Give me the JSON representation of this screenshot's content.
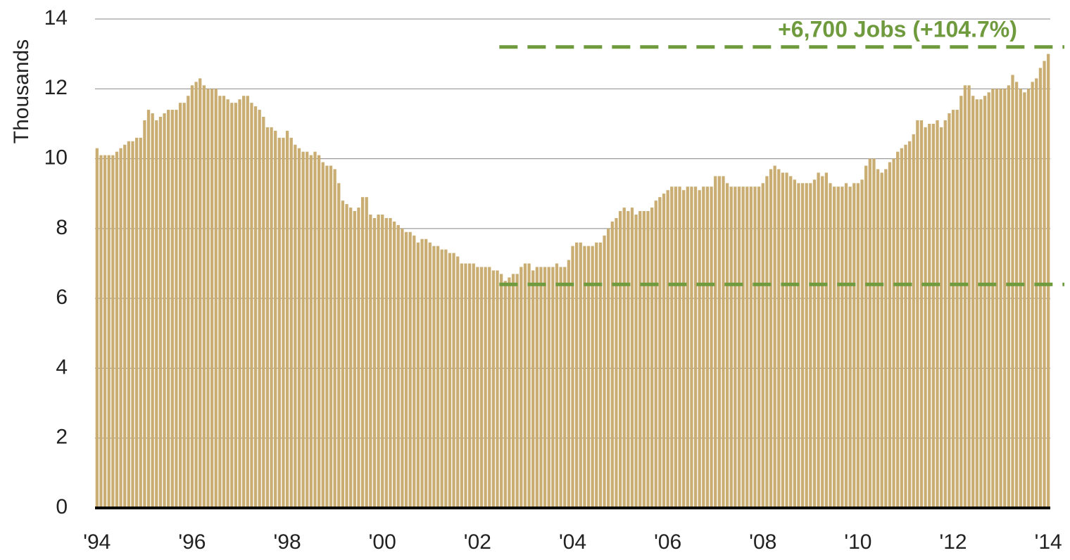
{
  "chart_data": {
    "type": "bar",
    "y_label": "Thousands",
    "annotation": "+6,700 Jobs (+104.7%)",
    "color": "#c9ad72",
    "ref_color": "#6f9a3e",
    "reference_lines": [
      {
        "value": 6.4,
        "start": 102
      },
      {
        "value": 13.2,
        "start": 102
      }
    ],
    "ylim": [
      0,
      14
    ],
    "yticks": [
      0,
      2,
      4,
      6,
      8,
      10,
      12,
      14
    ],
    "grid": true,
    "categories": [
      "'94",
      null,
      null,
      null,
      null,
      null,
      null,
      null,
      null,
      null,
      null,
      null,
      null,
      null,
      null,
      null,
      null,
      null,
      null,
      null,
      null,
      null,
      null,
      null,
      "'96",
      null,
      null,
      null,
      null,
      null,
      null,
      null,
      null,
      null,
      null,
      null,
      null,
      null,
      null,
      null,
      null,
      null,
      null,
      null,
      null,
      null,
      null,
      null,
      "'98",
      null,
      null,
      null,
      null,
      null,
      null,
      null,
      null,
      null,
      null,
      null,
      null,
      null,
      null,
      null,
      null,
      null,
      null,
      null,
      null,
      null,
      null,
      null,
      "'00",
      null,
      null,
      null,
      null,
      null,
      null,
      null,
      null,
      null,
      null,
      null,
      null,
      null,
      null,
      null,
      null,
      null,
      null,
      null,
      null,
      null,
      null,
      null,
      "'02",
      null,
      null,
      null,
      null,
      null,
      null,
      null,
      null,
      null,
      null,
      null,
      null,
      null,
      null,
      null,
      null,
      null,
      null,
      null,
      null,
      null,
      null,
      null,
      "'04",
      null,
      null,
      null,
      null,
      null,
      null,
      null,
      null,
      null,
      null,
      null,
      null,
      null,
      null,
      null,
      null,
      null,
      null,
      null,
      null,
      null,
      null,
      null,
      "'06",
      null,
      null,
      null,
      null,
      null,
      null,
      null,
      null,
      null,
      null,
      null,
      null,
      null,
      null,
      null,
      null,
      null,
      null,
      null,
      null,
      null,
      null,
      null,
      "'08",
      null,
      null,
      null,
      null,
      null,
      null,
      null,
      null,
      null,
      null,
      null,
      null,
      null,
      null,
      null,
      null,
      null,
      null,
      null,
      null,
      null,
      null,
      null,
      "'10",
      null,
      null,
      null,
      null,
      null,
      null,
      null,
      null,
      null,
      null,
      null,
      null,
      null,
      null,
      null,
      null,
      null,
      null,
      null,
      null,
      null,
      null,
      null,
      "'12",
      null,
      null,
      null,
      null,
      null,
      null,
      null,
      null,
      null,
      null,
      null,
      null,
      null,
      null,
      null,
      null,
      null,
      null,
      null,
      null,
      null,
      null,
      null,
      "'14"
    ],
    "values": [
      10.3,
      10.1,
      10.1,
      10.1,
      10.1,
      10.2,
      10.3,
      10.4,
      10.5,
      10.5,
      10.6,
      10.6,
      11.1,
      11.4,
      11.3,
      11.1,
      11.2,
      11.3,
      11.4,
      11.4,
      11.4,
      11.6,
      11.6,
      11.8,
      12.1,
      12.2,
      12.3,
      12.1,
      12.0,
      12.0,
      12.0,
      11.8,
      11.8,
      11.7,
      11.6,
      11.6,
      11.7,
      11.8,
      11.8,
      11.6,
      11.5,
      11.4,
      11.2,
      10.9,
      10.9,
      10.8,
      10.6,
      10.6,
      10.8,
      10.6,
      10.4,
      10.3,
      10.2,
      10.2,
      10.1,
      10.2,
      10.1,
      9.9,
      9.8,
      9.8,
      9.7,
      9.3,
      8.8,
      8.7,
      8.6,
      8.5,
      8.6,
      8.9,
      8.9,
      8.4,
      8.3,
      8.4,
      8.4,
      8.3,
      8.3,
      8.2,
      8.1,
      8.0,
      7.9,
      7.9,
      7.8,
      7.6,
      7.7,
      7.7,
      7.6,
      7.5,
      7.5,
      7.4,
      7.4,
      7.3,
      7.3,
      7.2,
      7.0,
      7.0,
      7.0,
      7.0,
      6.9,
      6.9,
      6.9,
      6.9,
      6.8,
      6.8,
      6.7,
      6.5,
      6.6,
      6.7,
      6.7,
      6.9,
      7.0,
      7.0,
      6.8,
      6.9,
      6.9,
      6.9,
      6.9,
      6.9,
      7.0,
      6.9,
      6.9,
      7.1,
      7.5,
      7.6,
      7.6,
      7.5,
      7.5,
      7.5,
      7.6,
      7.6,
      7.8,
      8.0,
      8.2,
      8.3,
      8.5,
      8.6,
      8.5,
      8.6,
      8.4,
      8.5,
      8.5,
      8.5,
      8.6,
      8.8,
      8.9,
      9.0,
      9.1,
      9.2,
      9.2,
      9.2,
      9.1,
      9.2,
      9.2,
      9.2,
      9.1,
      9.2,
      9.2,
      9.2,
      9.5,
      9.5,
      9.5,
      9.3,
      9.2,
      9.2,
      9.2,
      9.2,
      9.2,
      9.2,
      9.2,
      9.2,
      9.3,
      9.5,
      9.7,
      9.8,
      9.7,
      9.6,
      9.6,
      9.5,
      9.4,
      9.3,
      9.3,
      9.3,
      9.3,
      9.4,
      9.6,
      9.5,
      9.6,
      9.3,
      9.2,
      9.2,
      9.2,
      9.3,
      9.2,
      9.3,
      9.3,
      9.4,
      9.8,
      10.0,
      10.0,
      9.7,
      9.6,
      9.7,
      9.9,
      10.0,
      10.2,
      10.3,
      10.4,
      10.5,
      10.7,
      11.1,
      11.1,
      10.9,
      11.0,
      11.0,
      11.1,
      10.9,
      11.1,
      11.3,
      11.4,
      11.4,
      11.8,
      12.1,
      12.1,
      11.8,
      11.7,
      11.7,
      11.8,
      11.9,
      12.0,
      12.0,
      12.0,
      12.0,
      12.1,
      12.4,
      12.2,
      12.0,
      11.9,
      12.0,
      12.2,
      12.3,
      12.6,
      12.8,
      13.0
    ]
  }
}
